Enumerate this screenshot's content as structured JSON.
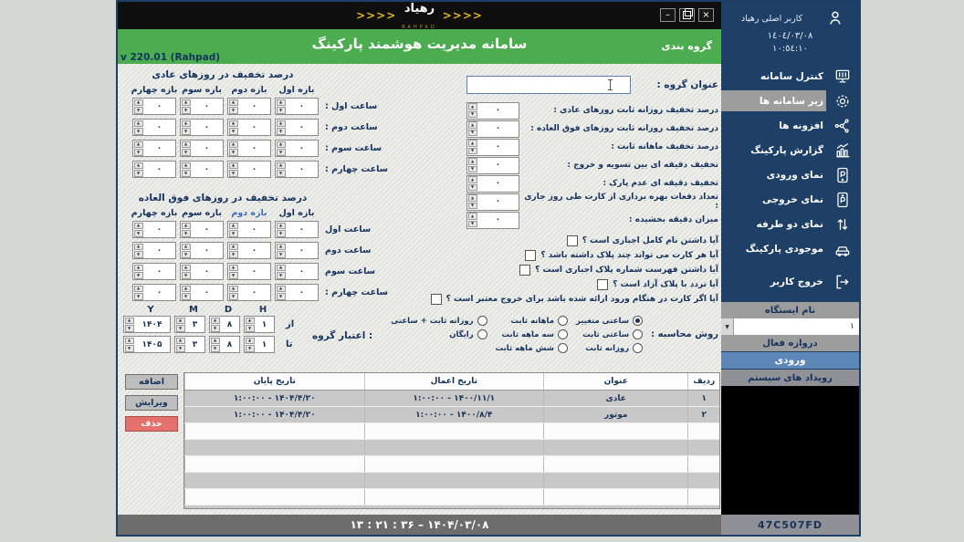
{
  "window": {
    "logo": {
      "arrows": ">>>>",
      "name": "رهیاد",
      "latin": "RAHPAD"
    },
    "controls": {
      "minimize": "–",
      "close": "×"
    },
    "title_bar": {
      "title": "سامانه مدیریت هوشمند پارکینگ",
      "tab": "گروه بندی",
      "version": "v 220.01 (Rahpad)"
    },
    "status_bar": {
      "text": "۱۳ : ۲۱ : ۳۶   –   ۱۴۰۴/۰۳/۰۸"
    }
  },
  "form": {
    "group_title": {
      "label": "عنوان گروه :",
      "value": ""
    },
    "fields": [
      {
        "label": "درصد تخفیف روزانه ثابت روزهای عادی :",
        "value": "۰"
      },
      {
        "label": "درصد تخفیف روزانه ثابت روزهای فوق العاده :",
        "value": "۰"
      },
      {
        "label": "درصد تخفیف ماهانه ثابت :",
        "value": "۰"
      },
      {
        "label": "تخفیف دقیقه ای بین تسویه و خروج :",
        "value": "۰"
      },
      {
        "label": "تخفیف دقیقه ای عدم پارک :",
        "value": "۰"
      },
      {
        "label": "تعداد دفعات بهره برداری از کارت طی روز جاری :",
        "value": "۰"
      },
      {
        "label": "میزان دقیقه بخشیده :",
        "value": "۰"
      }
    ],
    "checkboxes": [
      {
        "label": "آیا داشتن نام کامل اجباری است ؟",
        "checked": false
      },
      {
        "label": "آیا هر کارت می تواند چند پلاک داشته باشد ؟",
        "checked": false
      },
      {
        "label": "آیا داشتن فهرست شماره پلاک اجباری است ؟",
        "checked": false
      },
      {
        "label": "آیا تردد با پلاک آزاد است ؟",
        "checked": false
      },
      {
        "label": "آیا اگر کارت در هنگام ورود ارائه شده باشد برای خروج معتبر است ؟",
        "checked": false
      }
    ],
    "calc_method": {
      "label": "روش محاسبه :",
      "selected": "ساعتی متغییر",
      "columns": [
        [
          "ساعتی متغییر",
          "ساعتی ثابت",
          "روزانه ثابت"
        ],
        [
          "ماهانه ثابت",
          "سه ماهه ثابت",
          "شش ماهه ثابت"
        ],
        [
          "روزانه ثابت + ساعتی",
          "رایگان"
        ]
      ]
    },
    "normal_days": {
      "title": "درصد تخفیف در روزهای عادی",
      "columns": [
        "بازه اول",
        "بازه دوم",
        "بازه سوم",
        "بازه چهارم"
      ],
      "rows": [
        "ساعت اول :",
        "ساعت دوم :",
        "ساعت سوم :",
        "ساعت چهارم :"
      ],
      "value": "۰",
      "highlight_index": -1
    },
    "special_days": {
      "title": "درصد تخفیف در روزهای فوق العاده",
      "columns": [
        "بازه اول",
        "بازه دوم",
        "بازه سوم",
        "بازه چهارم"
      ],
      "rows": [
        "ساعت اول",
        "ساعت دوم",
        "ساعت سوم",
        "ساعت چهارم :"
      ],
      "value": "۰",
      "highlight_index": 1
    },
    "validity": {
      "label": "اعتبار گروه :",
      "headers": [
        "Y",
        "M",
        "D",
        "H"
      ],
      "from": {
        "label": "از",
        "y": "۱۴۰۴",
        "m": "۳",
        "d": "۸",
        "h": "۱"
      },
      "to": {
        "label": "تا",
        "y": "۱۴۰۵",
        "m": "۳",
        "d": "۸",
        "h": "۱"
      }
    },
    "buttons": {
      "add": "اضافه",
      "edit": "ویرایش",
      "delete": "حذف"
    }
  },
  "table": {
    "headers": [
      "ردیف",
      "عنوان",
      "تاریخ اعمال",
      "تاریخ پایان"
    ],
    "rows": [
      {
        "index": "۱",
        "title": "عادی",
        "apply_date": "۱:۰۰:۰۰ - ۱۴۰۰/۱۱/۱",
        "end_date": "۱:۰۰:۰۰ - ۱۴۰۴/۴/۲۰"
      },
      {
        "index": "۲",
        "title": "موتور",
        "apply_date": "۱:۰۰:۰۰ - ۱۴۰۰/۸/۴",
        "end_date": "۱:۰۰:۰۰ - ۱۴۰۴/۴/۲۰"
      }
    ]
  },
  "sidebar": {
    "user": {
      "name": "کاربر اصلی رهیاد",
      "date": "١٤٠٤/٠٣/٠٨",
      "time": "١٠:٥٤:١٠"
    },
    "menu": [
      {
        "label": "کنترل سامانه",
        "icon": "monitor-icon",
        "selected": false
      },
      {
        "label": "زیر سامانه ها",
        "icon": "gear-icon",
        "selected": true
      },
      {
        "label": "افزونه ها",
        "icon": "plugins-icon",
        "selected": false
      },
      {
        "label": "گزارش پارکینگ",
        "icon": "chart-icon",
        "selected": false
      },
      {
        "label": "نمای ورودی",
        "icon": "entry-view-icon",
        "selected": false
      },
      {
        "label": "نمای خروجی",
        "icon": "exit-view-icon",
        "selected": false
      },
      {
        "label": "نمای دو طرفه",
        "icon": "two-way-icon",
        "selected": false
      },
      {
        "label": "موجودی پارکینگ",
        "icon": "car-icon",
        "selected": false
      },
      {
        "label": "خروج کاربر",
        "icon": "logout-icon",
        "selected": false
      }
    ],
    "station": {
      "header": "نام ایستگاه",
      "value": "١"
    },
    "gate": {
      "header": "دروازه فعال",
      "active": "ورودی",
      "events": "رویداد های سیستم"
    },
    "footer_code": "47C507FD"
  },
  "colors": {
    "accent_green": "#4bad4f",
    "sidebar_navy": "#1e4067",
    "selected_gray": "#9d9d9d",
    "entry_blue": "#5c87b8",
    "delete_red": "#e4716b",
    "status_gray": "#6d6d6d",
    "highlight_blue": "#3a6cb5",
    "arrow_yellow": "#e2b41c",
    "label_navy": "#14325c"
  }
}
